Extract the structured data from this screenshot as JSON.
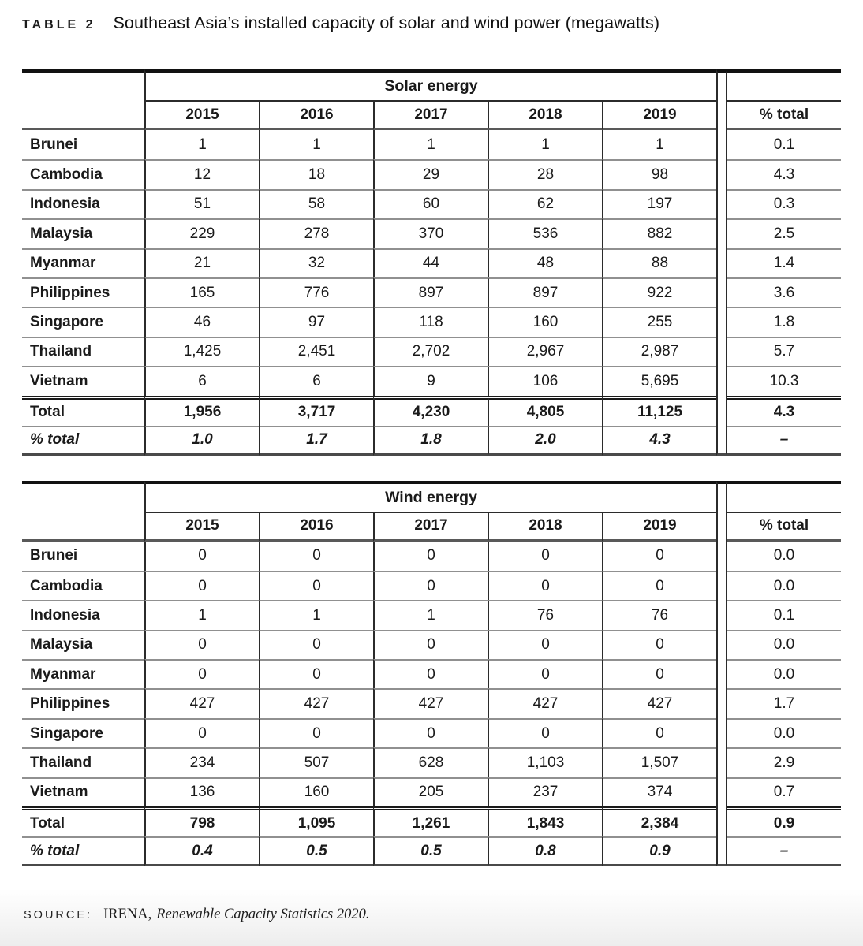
{
  "caption": {
    "label": "TABLE 2",
    "title": "Southeast Asia’s installed capacity of solar and wind power (megawatts)"
  },
  "columns": {
    "years": [
      "2015",
      "2016",
      "2017",
      "2018",
      "2019"
    ],
    "pct_total_header": "% total"
  },
  "tables": [
    {
      "section_header": "Solar energy",
      "rows": [
        {
          "country": "Brunei",
          "values": [
            "1",
            "1",
            "1",
            "1",
            "1"
          ],
          "pct_total": "0.1"
        },
        {
          "country": "Cambodia",
          "values": [
            "12",
            "18",
            "29",
            "28",
            "98"
          ],
          "pct_total": "4.3"
        },
        {
          "country": "Indonesia",
          "values": [
            "51",
            "58",
            "60",
            "62",
            "197"
          ],
          "pct_total": "0.3"
        },
        {
          "country": "Malaysia",
          "values": [
            "229",
            "278",
            "370",
            "536",
            "882"
          ],
          "pct_total": "2.5"
        },
        {
          "country": "Myanmar",
          "values": [
            "21",
            "32",
            "44",
            "48",
            "88"
          ],
          "pct_total": "1.4"
        },
        {
          "country": "Philippines",
          "values": [
            "165",
            "776",
            "897",
            "897",
            "922"
          ],
          "pct_total": "3.6"
        },
        {
          "country": "Singapore",
          "values": [
            "46",
            "97",
            "118",
            "160",
            "255"
          ],
          "pct_total": "1.8"
        },
        {
          "country": "Thailand",
          "values": [
            "1,425",
            "2,451",
            "2,702",
            "2,967",
            "2,987"
          ],
          "pct_total": "5.7"
        },
        {
          "country": "Vietnam",
          "values": [
            "6",
            "6",
            "9",
            "106",
            "5,695"
          ],
          "pct_total": "10.3"
        }
      ],
      "total_row": {
        "label": "Total",
        "values": [
          "1,956",
          "3,717",
          "4,230",
          "4,805",
          "11,125"
        ],
        "pct_total": "4.3"
      },
      "pct_row": {
        "label": "% total",
        "values": [
          "1.0",
          "1.7",
          "1.8",
          "2.0",
          "4.3"
        ],
        "pct_total": "–"
      }
    },
    {
      "section_header": "Wind energy",
      "rows": [
        {
          "country": "Brunei",
          "values": [
            "0",
            "0",
            "0",
            "0",
            "0"
          ],
          "pct_total": "0.0"
        },
        {
          "country": "Cambodia",
          "values": [
            "0",
            "0",
            "0",
            "0",
            "0"
          ],
          "pct_total": "0.0"
        },
        {
          "country": "Indonesia",
          "values": [
            "1",
            "1",
            "1",
            "76",
            "76"
          ],
          "pct_total": "0.1"
        },
        {
          "country": "Malaysia",
          "values": [
            "0",
            "0",
            "0",
            "0",
            "0"
          ],
          "pct_total": "0.0"
        },
        {
          "country": "Myanmar",
          "values": [
            "0",
            "0",
            "0",
            "0",
            "0"
          ],
          "pct_total": "0.0"
        },
        {
          "country": "Philippines",
          "values": [
            "427",
            "427",
            "427",
            "427",
            "427"
          ],
          "pct_total": "1.7"
        },
        {
          "country": "Singapore",
          "values": [
            "0",
            "0",
            "0",
            "0",
            "0"
          ],
          "pct_total": "0.0"
        },
        {
          "country": "Thailand",
          "values": [
            "234",
            "507",
            "628",
            "1,103",
            "1,507"
          ],
          "pct_total": "2.9"
        },
        {
          "country": "Vietnam",
          "values": [
            "136",
            "160",
            "205",
            "237",
            "374"
          ],
          "pct_total": "0.7"
        }
      ],
      "total_row": {
        "label": "Total",
        "values": [
          "798",
          "1,095",
          "1,261",
          "1,843",
          "2,384"
        ],
        "pct_total": "0.9"
      },
      "pct_row": {
        "label": "% total",
        "values": [
          "0.4",
          "0.5",
          "0.5",
          "0.8",
          "0.9"
        ],
        "pct_total": "–"
      }
    }
  ],
  "source": {
    "label": "SOURCE:",
    "organization": "IRENA,",
    "publication": "Renewable Capacity Statistics 2020."
  }
}
